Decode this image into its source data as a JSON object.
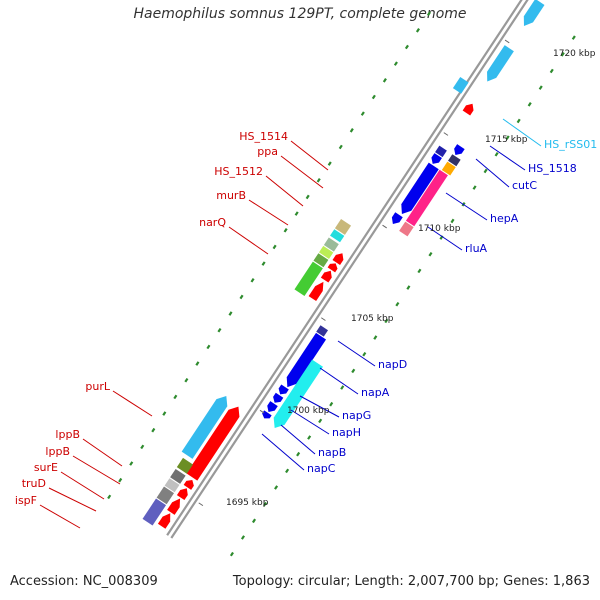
{
  "title": "Haemophilus somnus 129PT, complete genome",
  "footer": {
    "accession": "Accession: NC_008309",
    "summary": "Topology: circular; Length: 2,007,700 bp; Genes: 1,863"
  },
  "map": {
    "backbone_color": "#999999",
    "axis": [
      {
        "label": "1695 kbp",
        "kbp": 1695
      },
      {
        "label": "1700 kbp",
        "kbp": 1700
      },
      {
        "label": "1705 kbp",
        "kbp": 1705
      },
      {
        "label": "1710 kbp",
        "kbp": 1710
      },
      {
        "label": "1715 kbp",
        "kbp": 1715
      },
      {
        "label": "1720 kbp",
        "kbp": 1720
      }
    ],
    "labels": [
      {
        "text": "purL",
        "color": "#cc0000",
        "side": "left"
      },
      {
        "text": "lppB",
        "color": "#cc0000",
        "side": "left"
      },
      {
        "text": "lppB",
        "color": "#cc0000",
        "side": "left"
      },
      {
        "text": "surE",
        "color": "#cc0000",
        "side": "left"
      },
      {
        "text": "truD",
        "color": "#cc0000",
        "side": "left"
      },
      {
        "text": "ispF",
        "color": "#cc0000",
        "side": "left"
      },
      {
        "text": "HS_1514",
        "color": "#cc0000",
        "side": "left"
      },
      {
        "text": "ppa",
        "color": "#cc0000",
        "side": "left"
      },
      {
        "text": "HS_1512",
        "color": "#cc0000",
        "side": "left"
      },
      {
        "text": "murB",
        "color": "#cc0000",
        "side": "left"
      },
      {
        "text": "narQ",
        "color": "#cc0000",
        "side": "left"
      },
      {
        "text": "napD",
        "color": "#0000cc",
        "side": "right"
      },
      {
        "text": "napA",
        "color": "#0000cc",
        "side": "right"
      },
      {
        "text": "napG",
        "color": "#0000cc",
        "side": "right"
      },
      {
        "text": "napH",
        "color": "#0000cc",
        "side": "right"
      },
      {
        "text": "napB",
        "color": "#0000cc",
        "side": "right"
      },
      {
        "text": "napC",
        "color": "#0000cc",
        "side": "right"
      },
      {
        "text": "rluA",
        "color": "#0000cc",
        "side": "right"
      },
      {
        "text": "hepA",
        "color": "#0000cc",
        "side": "right"
      },
      {
        "text": "cutC",
        "color": "#0000cc",
        "side": "right"
      },
      {
        "text": "HS_1518",
        "color": "#0000cc",
        "side": "right"
      },
      {
        "text": "HS_rSS01",
        "color": "#22bbee",
        "side": "right"
      }
    ]
  }
}
